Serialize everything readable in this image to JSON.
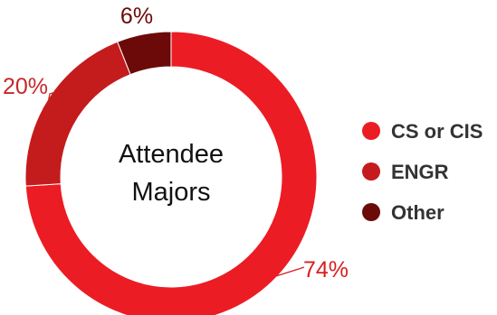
{
  "chart_data": {
    "type": "pie",
    "donut": true,
    "title_lines": [
      "Attendee",
      "Majors"
    ],
    "categories": [
      "CS or CIS",
      "ENGR",
      "Other"
    ],
    "values": [
      74,
      20,
      6
    ],
    "value_labels": [
      "74%",
      "20%",
      "6%"
    ],
    "colors": [
      "#ec1c24",
      "#c41b1c",
      "#6b0a08"
    ],
    "label_colors": [
      "#d81e1e",
      "#c42a2a",
      "#6b0a08"
    ],
    "legend_position": "right"
  }
}
